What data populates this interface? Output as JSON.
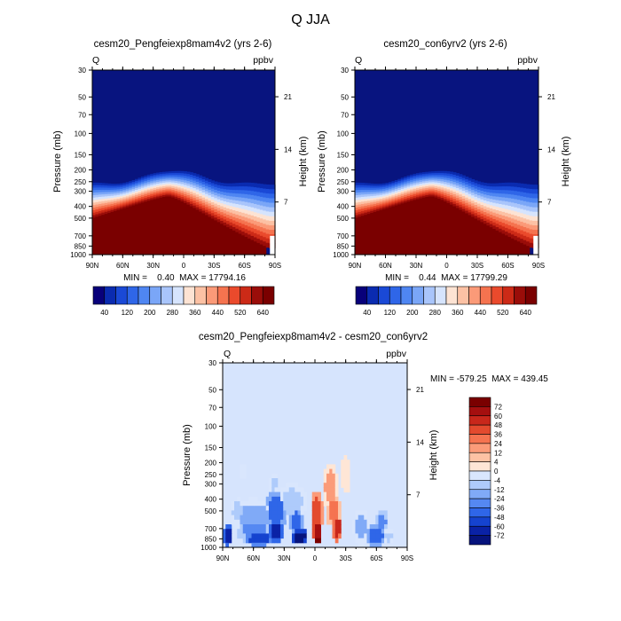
{
  "figure": {
    "title": "Q JJA"
  },
  "chart_data": [
    {
      "type": "heatmap",
      "title": "cesm20_Pengfeiexp8mam4v2 (yrs 2-6)",
      "left_label": "Q",
      "right_label": "ppbv",
      "ylabel": "Pressure (mb)",
      "ylabel_right": "Height (km)",
      "x_ticks": [
        "90N",
        "60N",
        "30N",
        "0",
        "30S",
        "60S",
        "90S"
      ],
      "y_ticks": [
        "30",
        "50",
        "70",
        "100",
        "150",
        "200",
        "250",
        "300",
        "400",
        "500",
        "700",
        "850",
        "1000"
      ],
      "y_ticks_right": [
        "21",
        "14",
        "7"
      ],
      "xlim": [
        "90N",
        "90S"
      ],
      "ylim": [
        1000,
        30
      ],
      "y_scale": "log",
      "stats": "MIN =    0.40  MAX = 17794.16",
      "colorbar": {
        "orientation": "horizontal",
        "tick_labels": [
          "40",
          "120",
          "200",
          "280",
          "360",
          "440",
          "520",
          "640"
        ]
      }
    },
    {
      "type": "heatmap",
      "title": "cesm20_con6yrv2 (yrs 2-6)",
      "left_label": "Q",
      "right_label": "ppbv",
      "ylabel": "Pressure (mb)",
      "ylabel_right": "Height (km)",
      "x_ticks": [
        "90N",
        "60N",
        "30N",
        "0",
        "30S",
        "60S",
        "90S"
      ],
      "y_ticks": [
        "30",
        "50",
        "70",
        "100",
        "150",
        "200",
        "250",
        "300",
        "400",
        "500",
        "700",
        "850",
        "1000"
      ],
      "y_ticks_right": [
        "21",
        "14",
        "7"
      ],
      "xlim": [
        "90N",
        "90S"
      ],
      "ylim": [
        1000,
        30
      ],
      "y_scale": "log",
      "stats": "MIN =    0.44  MAX = 17799.29",
      "colorbar": {
        "orientation": "horizontal",
        "tick_labels": [
          "40",
          "120",
          "200",
          "280",
          "360",
          "440",
          "520",
          "640"
        ]
      }
    },
    {
      "type": "heatmap",
      "title": "cesm20_Pengfeiexp8mam4v2 - cesm20_con6yrv2",
      "left_label": "Q",
      "right_label": "ppbv",
      "ylabel": "Pressure (mb)",
      "ylabel_right": "Height (km)",
      "x_ticks": [
        "90N",
        "60N",
        "30N",
        "0",
        "30S",
        "60S",
        "90S"
      ],
      "y_ticks": [
        "30",
        "50",
        "70",
        "100",
        "150",
        "200",
        "250",
        "300",
        "400",
        "500",
        "700",
        "850",
        "1000"
      ],
      "y_ticks_right": [
        "21",
        "14",
        "7"
      ],
      "xlim": [
        "90N",
        "90S"
      ],
      "ylim": [
        1000,
        30
      ],
      "y_scale": "log",
      "stats": "MIN = -579.25  MAX = 439.45",
      "colorbar": {
        "orientation": "vertical",
        "tick_labels": [
          "72",
          "60",
          "48",
          "36",
          "24",
          "12",
          "4",
          "0",
          "-4",
          "-12",
          "-24",
          "-36",
          "-48",
          "-60",
          "-72"
        ]
      }
    }
  ],
  "colors": {
    "seq_scale": [
      "#08007a",
      "#0a2bb0",
      "#1a49d6",
      "#2f66e8",
      "#4f86f2",
      "#7aa6f7",
      "#a9c5fb",
      "#d6e4fd",
      "#fde3d3",
      "#fcc1a4",
      "#fb9a78",
      "#f5734f",
      "#ea4a2c",
      "#cc2a17",
      "#9a0d09",
      "#7a0000"
    ],
    "div_scale": [
      "#7a0000",
      "#a50f0f",
      "#c8271b",
      "#e34a2e",
      "#f57350",
      "#fb9b79",
      "#fdc2a4",
      "#fee6d6",
      "#d9e6fd",
      "#aecbfb",
      "#80aaf7",
      "#5588f2",
      "#2f66e8",
      "#1543cf",
      "#0a22a6",
      "#06137c"
    ],
    "background_blue": "#08147f",
    "diff_background": "#d6e4fd"
  }
}
